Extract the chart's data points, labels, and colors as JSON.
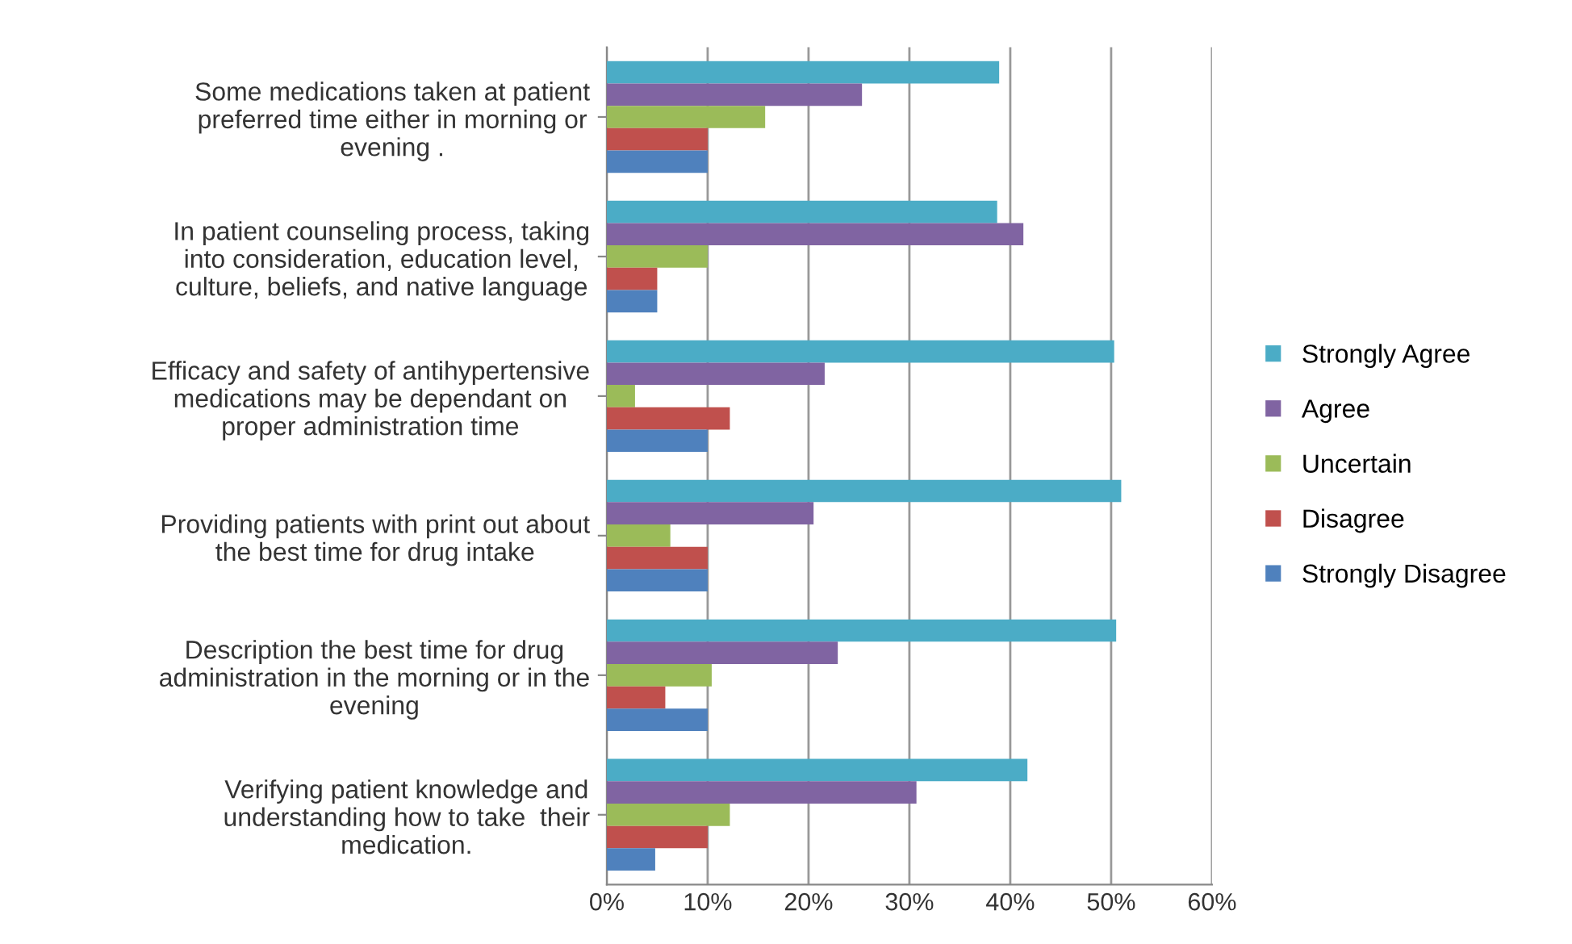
{
  "chart_data": {
    "type": "bar",
    "orientation": "horizontal",
    "categories": [
      "Some medications taken at patient\npreferred time either in morning or\nevening .",
      "In patient counseling process, taking\ninto consideration, education level,\nculture, beliefs, and native language",
      "Efficacy and safety of antihypertensive\nmedications may be dependant on\nproper administration time",
      "Providing patients with print out about\nthe best time for drug intake",
      "Description the best time for drug\nadministration in the morning or in the\nevening",
      "Verifying patient knowledge and\nunderstanding how to take  their\nmedication."
    ],
    "series": [
      {
        "name": "Strongly Agree",
        "color": "#4bacc6",
        "values": [
          38.9,
          38.7,
          50.3,
          51,
          50.5,
          41.7
        ]
      },
      {
        "name": "Agree",
        "color": "#8064a2",
        "values": [
          25.3,
          41.3,
          21.6,
          20.5,
          22.9,
          30.7
        ]
      },
      {
        "name": "Uncertain",
        "color": "#9bbb59",
        "values": [
          15.7,
          10,
          2.8,
          6.3,
          10.4,
          12.2
        ]
      },
      {
        "name": "Disagree",
        "color": "#c0504d",
        "values": [
          10,
          5,
          12.2,
          10,
          5.8,
          10
        ]
      },
      {
        "name": "Strongly Disagree",
        "color": "#4f81bd",
        "values": [
          10,
          5,
          10,
          10,
          10,
          4.8
        ]
      }
    ],
    "xlim": [
      0,
      60
    ],
    "xticks": [
      {
        "value": 0,
        "label": "0%"
      },
      {
        "value": 10,
        "label": "10%"
      },
      {
        "value": 20,
        "label": "20%"
      },
      {
        "value": 30,
        "label": "30%"
      },
      {
        "value": 40,
        "label": "40%"
      },
      {
        "value": 50,
        "label": "50%"
      },
      {
        "value": 60,
        "label": "60%"
      }
    ],
    "grid": "x",
    "legend": "right"
  }
}
